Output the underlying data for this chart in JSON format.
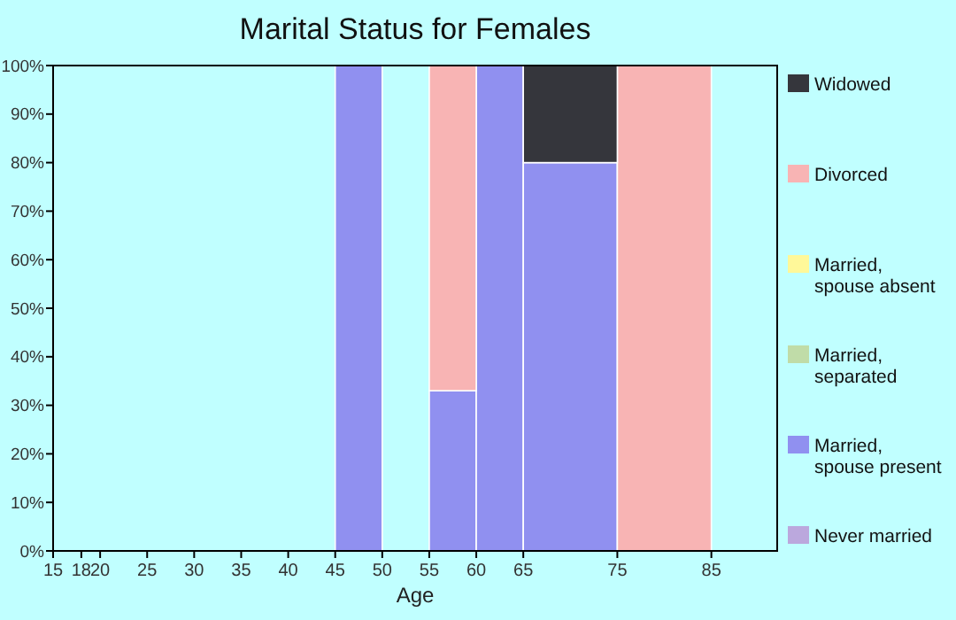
{
  "chart_data": {
    "type": "bar",
    "title": "Marital Status for Females",
    "xlabel": "Age",
    "stacked": true,
    "legend": "right",
    "x": [
      47.5,
      52.5,
      57.5,
      62.5,
      70,
      80
    ],
    "series": [
      {
        "name": "Never married",
        "color": "#bba8dd",
        "values": [
          0,
          0,
          0,
          0,
          0,
          0
        ]
      },
      {
        "name": "Married, spouse present",
        "color": "#9090f0",
        "values": [
          100,
          0,
          33,
          100,
          80,
          0
        ]
      },
      {
        "name": "Married, separated",
        "color": "#c0dca8",
        "values": [
          0,
          0,
          0,
          0,
          0,
          0
        ]
      },
      {
        "name": "Married, spouse absent",
        "color": "#fff899",
        "values": [
          0,
          0,
          0,
          0,
          0,
          0
        ]
      },
      {
        "name": "Divorced",
        "color": "#f8b4b4",
        "values": [
          0,
          0,
          67,
          0,
          0,
          100
        ]
      },
      {
        "name": "Widowed",
        "color": "#35363c",
        "values": [
          0,
          0,
          0,
          0,
          20,
          0
        ]
      }
    ],
    "xlim": [
      15,
      92
    ],
    "xticks": [
      15,
      18,
      20,
      25,
      30,
      35,
      40,
      45,
      50,
      55,
      60,
      65,
      75,
      85
    ],
    "ylim": [
      0,
      100
    ],
    "yticks": [
      {
        "value": 0,
        "label": "0%"
      },
      {
        "value": 10,
        "label": "10%"
      },
      {
        "value": 20,
        "label": "20%"
      },
      {
        "value": 30,
        "label": "30%"
      },
      {
        "value": 40,
        "label": "40%"
      },
      {
        "value": 50,
        "label": "50%"
      },
      {
        "value": 60,
        "label": "60%"
      },
      {
        "value": 70,
        "label": "70%"
      },
      {
        "value": 80,
        "label": "80%"
      },
      {
        "value": 90,
        "label": "90%"
      },
      {
        "value": 100,
        "label": "100%"
      }
    ],
    "grid": false
  }
}
